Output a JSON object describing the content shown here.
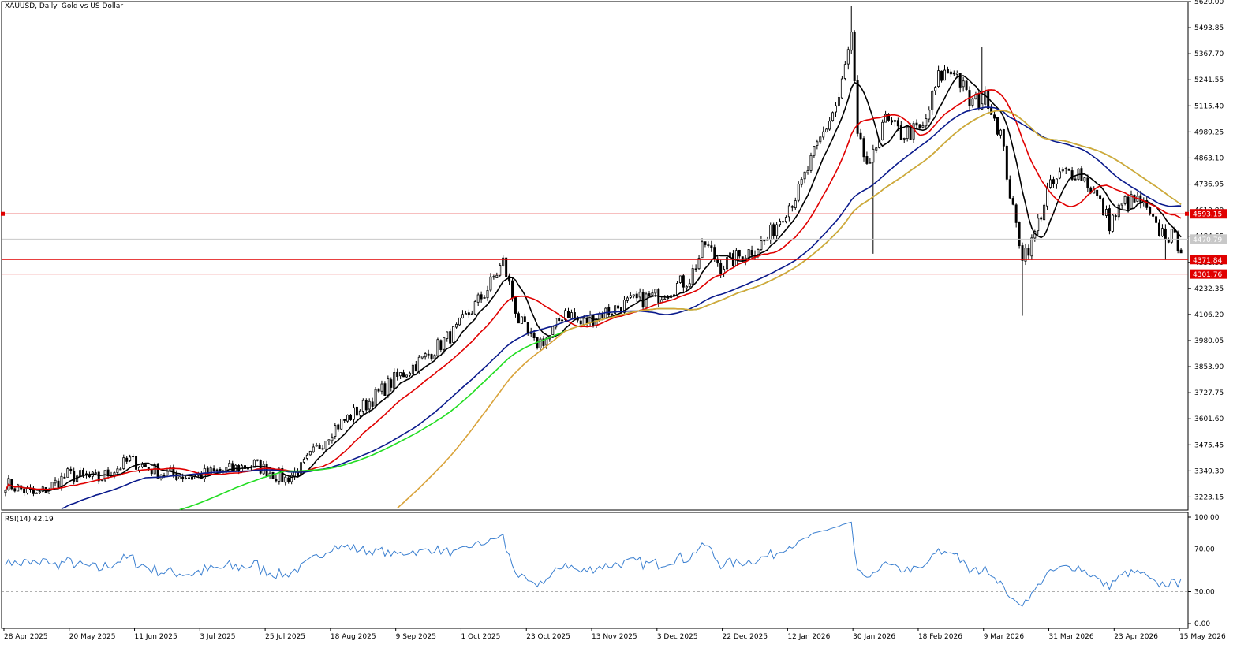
{
  "title": "XAUUSD, Daily:  Gold vs US Dollar",
  "colors": {
    "up_candle": "#000000",
    "down_candle": "#000000",
    "ma_black": "#000000",
    "ma_red": "#e00000",
    "ma_navy": "#0a1a8c",
    "ma_green": "#22dd22",
    "ma_gold": "#d9a33a",
    "hline": "#e00000",
    "rsi_line": "#3a7fd0",
    "rsi_level": "#b0b0b0",
    "grid_axis": "#000000"
  },
  "chart_data": [
    {
      "type": "candlestick",
      "symbol": "XAUUSD",
      "timeframe": "Daily",
      "title": "XAUUSD, Daily:  Gold vs US Dollar",
      "y_ticks": [
        "5620.00",
        "5493.85",
        "5367.70",
        "5241.55",
        "5115.40",
        "4989.25",
        "4863.10",
        "4736.95",
        "4610.80",
        "4484.65",
        "4358.50",
        "4232.35",
        "4106.20",
        "3980.05",
        "3853.90",
        "3727.75",
        "3601.60",
        "3475.45",
        "3349.30",
        "3223.15"
      ],
      "ylim": [
        3160,
        5620
      ],
      "x_ticks": [
        "28 Apr 2025",
        "20 May 2025",
        "11 Jun 2025",
        "3 Jul 2025",
        "25 Jul 2025",
        "18 Aug 2025",
        "9 Sep 2025",
        "1 Oct 2025",
        "23 Oct 2025",
        "13 Nov 2025",
        "3 Dec 2025",
        "22 Dec 2025",
        "12 Jan 2026",
        "30 Jan 2026",
        "18 Feb 2026",
        "9 Mar 2026",
        "31 Mar 2026",
        "23 Apr 2026",
        "15 May 2026"
      ],
      "anchors": [
        [
          0,
          3290
        ],
        [
          10,
          3230
        ],
        [
          20,
          3330
        ],
        [
          30,
          3310
        ],
        [
          40,
          3400
        ],
        [
          50,
          3340
        ],
        [
          60,
          3320
        ],
        [
          70,
          3350
        ],
        [
          80,
          3380
        ],
        [
          90,
          3310
        ],
        [
          95,
          3360
        ],
        [
          105,
          3550
        ],
        [
          115,
          3660
        ],
        [
          125,
          3790
        ],
        [
          135,
          3900
        ],
        [
          145,
          4030
        ],
        [
          155,
          4230
        ],
        [
          160,
          4360
        ],
        [
          165,
          4080
        ],
        [
          170,
          3960
        ],
        [
          175,
          4000
        ],
        [
          180,
          4130
        ],
        [
          185,
          4060
        ],
        [
          190,
          4100
        ],
        [
          200,
          4160
        ],
        [
          210,
          4200
        ],
        [
          220,
          4280
        ],
        [
          225,
          4450
        ],
        [
          230,
          4340
        ],
        [
          240,
          4420
        ],
        [
          245,
          4470
        ],
        [
          250,
          4600
        ],
        [
          255,
          4700
        ],
        [
          262,
          4950
        ],
        [
          268,
          5150
        ],
        [
          272,
          5450
        ],
        [
          274,
          4950
        ],
        [
          278,
          4800
        ],
        [
          282,
          5050
        ],
        [
          288,
          4980
        ],
        [
          295,
          5000
        ],
        [
          300,
          5250
        ],
        [
          305,
          5300
        ],
        [
          310,
          5130
        ],
        [
          316,
          5150
        ],
        [
          320,
          4980
        ],
        [
          324,
          4600
        ],
        [
          327,
          4400
        ],
        [
          330,
          4450
        ],
        [
          335,
          4700
        ],
        [
          340,
          4790
        ],
        [
          345,
          4800
        ],
        [
          350,
          4700
        ],
        [
          355,
          4550
        ],
        [
          360,
          4650
        ],
        [
          365,
          4650
        ],
        [
          370,
          4520
        ],
        [
          375,
          4480
        ],
        [
          378,
          4440
        ]
      ],
      "wick_spikes": [
        [
          272,
          5600
        ],
        [
          279,
          4400
        ],
        [
          314,
          5400
        ],
        [
          327,
          4100
        ],
        [
          373,
          4370
        ]
      ],
      "moving_averages": [
        {
          "color": "black",
          "period": 9
        },
        {
          "color": "red",
          "period": 21
        },
        {
          "color": "navy",
          "period": 50
        },
        {
          "color": "green",
          "period": 100
        },
        {
          "color": "gold",
          "period": 200
        }
      ],
      "horizontal_lines": [
        {
          "value": 4593.15,
          "label": "4593.15",
          "color": "red"
        },
        {
          "value": 4371.84,
          "label": "4371.84",
          "color": "red"
        },
        {
          "value": 4301.76,
          "label": "4301.76",
          "color": "red"
        }
      ],
      "current_price": {
        "value": 4470.79,
        "label": "4470.79"
      }
    },
    {
      "type": "line",
      "title": "RSI(14) 42.19",
      "series": [
        {
          "name": "RSI(14)",
          "last_value": 42.19
        }
      ],
      "ylim": [
        0,
        100
      ],
      "y_ticks": [
        "100.00",
        "70.00",
        "30.00",
        "0.00"
      ],
      "levels": [
        70,
        30
      ]
    }
  ],
  "labels": {
    "rsi_title": "RSI(14) 42.19",
    "price_label_4593": "4593.15",
    "price_label_4371": "4371.84",
    "price_label_4301": "4301.76",
    "price_label_current": "4470.79"
  }
}
